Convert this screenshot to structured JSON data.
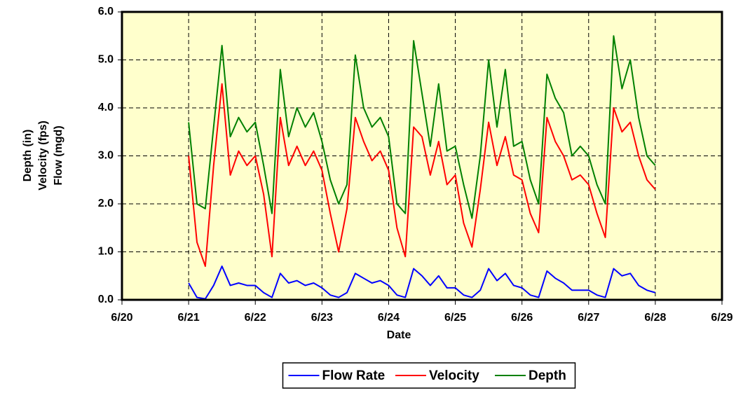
{
  "chart_data": {
    "type": "line",
    "x_label": "Date",
    "y_label": [
      "Depth (in)",
      "Velocity (fps)",
      "Flow (mgd)"
    ],
    "xlim": [
      20,
      29
    ],
    "xticks": [
      {
        "value": 20,
        "label": "6/20"
      },
      {
        "value": 21,
        "label": "6/21"
      },
      {
        "value": 22,
        "label": "6/22"
      },
      {
        "value": 23,
        "label": "6/23"
      },
      {
        "value": 24,
        "label": "6/24"
      },
      {
        "value": 25,
        "label": "6/25"
      },
      {
        "value": 26,
        "label": "6/26"
      },
      {
        "value": 27,
        "label": "6/27"
      },
      {
        "value": 28,
        "label": "6/28"
      },
      {
        "value": 29,
        "label": "6/29"
      }
    ],
    "ylim": [
      0,
      6
    ],
    "yticks": [
      {
        "value": 0,
        "label": "0.0"
      },
      {
        "value": 1,
        "label": "1.0"
      },
      {
        "value": 2,
        "label": "2.0"
      },
      {
        "value": 3,
        "label": "3.0"
      },
      {
        "value": 4,
        "label": "4.0"
      },
      {
        "value": 5,
        "label": "5.0"
      },
      {
        "value": 6,
        "label": "6.0"
      }
    ],
    "grid": true,
    "legend": "bottom",
    "x": [
      21,
      21.125,
      21.25,
      21.375,
      21.5,
      21.625,
      21.75,
      21.875,
      22,
      22.125,
      22.25,
      22.375,
      22.5,
      22.625,
      22.75,
      22.875,
      23,
      23.125,
      23.25,
      23.375,
      23.5,
      23.625,
      23.75,
      23.875,
      24,
      24.125,
      24.25,
      24.375,
      24.5,
      24.625,
      24.75,
      24.875,
      25,
      25.125,
      25.25,
      25.375,
      25.5,
      25.625,
      25.75,
      25.875,
      26,
      26.125,
      26.25,
      26.375,
      26.5,
      26.625,
      26.75,
      26.875,
      27,
      27.125,
      27.25,
      27.375,
      27.5,
      27.625,
      27.75,
      27.875,
      28
    ],
    "series": [
      {
        "name": "Flow Rate",
        "color": "#0000ff",
        "values": [
          0.35,
          0.05,
          0.02,
          0.3,
          0.7,
          0.3,
          0.35,
          0.3,
          0.3,
          0.15,
          0.05,
          0.55,
          0.35,
          0.4,
          0.3,
          0.35,
          0.25,
          0.1,
          0.05,
          0.15,
          0.55,
          0.45,
          0.35,
          0.4,
          0.3,
          0.1,
          0.05,
          0.65,
          0.5,
          0.3,
          0.5,
          0.25,
          0.25,
          0.1,
          0.05,
          0.2,
          0.65,
          0.4,
          0.55,
          0.3,
          0.25,
          0.1,
          0.05,
          0.6,
          0.45,
          0.35,
          0.2,
          0.2,
          0.2,
          0.1,
          0.05,
          0.65,
          0.5,
          0.55,
          0.3,
          0.2,
          0.15
        ]
      },
      {
        "name": "Velocity",
        "color": "#ff0000",
        "values": [
          3.0,
          1.2,
          0.7,
          2.8,
          4.5,
          2.6,
          3.1,
          2.8,
          3.0,
          2.2,
          0.9,
          3.8,
          2.8,
          3.2,
          2.8,
          3.1,
          2.7,
          1.8,
          1.0,
          1.9,
          3.8,
          3.3,
          2.9,
          3.1,
          2.7,
          1.5,
          0.9,
          3.6,
          3.4,
          2.6,
          3.3,
          2.4,
          2.6,
          1.6,
          1.1,
          2.3,
          3.7,
          2.8,
          3.4,
          2.6,
          2.5,
          1.8,
          1.4,
          3.8,
          3.3,
          3.0,
          2.5,
          2.6,
          2.4,
          1.8,
          1.3,
          4.0,
          3.5,
          3.7,
          3.0,
          2.5,
          2.3
        ]
      },
      {
        "name": "Depth",
        "color": "#008000",
        "values": [
          3.7,
          2.0,
          1.9,
          3.6,
          5.3,
          3.4,
          3.8,
          3.5,
          3.7,
          2.8,
          1.8,
          4.8,
          3.4,
          4.0,
          3.6,
          3.9,
          3.3,
          2.5,
          2.0,
          2.4,
          5.1,
          4.0,
          3.6,
          3.8,
          3.4,
          2.0,
          1.8,
          5.4,
          4.3,
          3.2,
          4.5,
          3.1,
          3.2,
          2.4,
          1.7,
          3.0,
          5.0,
          3.6,
          4.8,
          3.2,
          3.3,
          2.5,
          2.0,
          4.7,
          4.2,
          3.9,
          3.0,
          3.2,
          3.0,
          2.4,
          2.0,
          5.5,
          4.4,
          5.0,
          3.8,
          3.0,
          2.8
        ]
      }
    ]
  }
}
